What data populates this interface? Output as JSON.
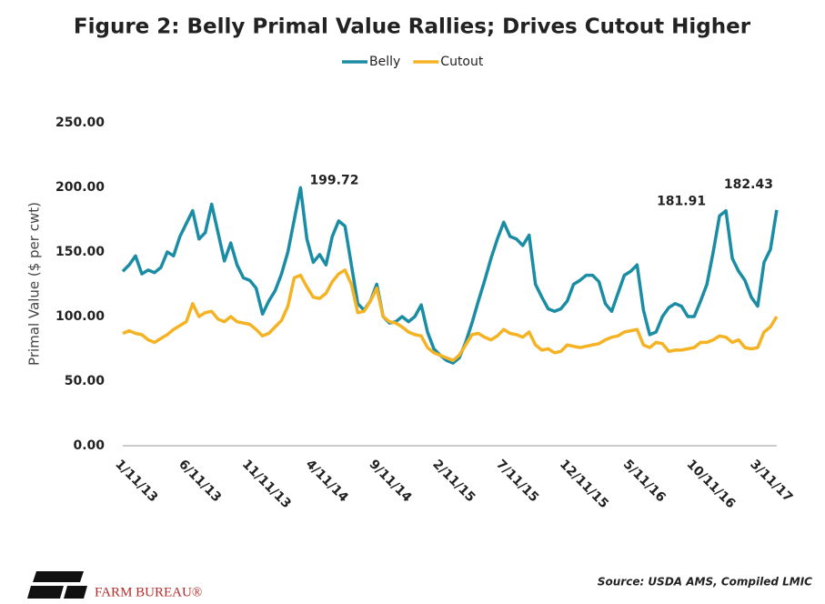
{
  "chart_data": {
    "type": "line",
    "title": "Figure 2: Belly Primal Value Rallies; Drives Cutout Higher",
    "ylabel": "Primal Value ($ per cwt)",
    "source": "Source: USDA AMS, Compiled LMIC",
    "legend": "top",
    "grid": false,
    "categories": [
      "1/11/13",
      null,
      null,
      null,
      null,
      null,
      null,
      null,
      null,
      null,
      "6/11/13",
      null,
      null,
      null,
      null,
      null,
      null,
      null,
      null,
      null,
      "11/11/13",
      null,
      null,
      null,
      null,
      null,
      null,
      null,
      null,
      null,
      "4/11/14",
      null,
      null,
      null,
      null,
      null,
      null,
      null,
      null,
      null,
      "9/11/14",
      null,
      null,
      null,
      null,
      null,
      null,
      null,
      null,
      null,
      "2/11/15",
      null,
      null,
      null,
      null,
      null,
      null,
      null,
      null,
      null,
      "7/11/15",
      null,
      null,
      null,
      null,
      null,
      null,
      null,
      null,
      null,
      "12/11/15",
      null,
      null,
      null,
      null,
      null,
      null,
      null,
      null,
      null,
      "5/11/16",
      null,
      null,
      null,
      null,
      null,
      null,
      null,
      null,
      null,
      "10/11/16",
      null,
      null,
      null,
      null,
      null,
      null,
      null,
      null,
      null,
      "3/11/17",
      null,
      null,
      null
    ],
    "series": [
      {
        "name": "Belly",
        "color": "#1a8ca3",
        "values": [
          135,
          140,
          147,
          133,
          136,
          134,
          138,
          150,
          147,
          162,
          172,
          182,
          160,
          165,
          187,
          165,
          143,
          157,
          140,
          130,
          128,
          122,
          102,
          112,
          120,
          133,
          150,
          175,
          199.72,
          160,
          142,
          148,
          140,
          162,
          174,
          170,
          140,
          110,
          105,
          112,
          125,
          100,
          95,
          96,
          100,
          96,
          100,
          109,
          88,
          75,
          70,
          66,
          64,
          68,
          80,
          95,
          112,
          128,
          145,
          160,
          173,
          162,
          160,
          155,
          163,
          125,
          115,
          106,
          104,
          106,
          112,
          125,
          128,
          132,
          132,
          127,
          110,
          104,
          118,
          132,
          135,
          140,
          105,
          86,
          88,
          100,
          107,
          110,
          108,
          100,
          100,
          112,
          125,
          150,
          178,
          181.91,
          145,
          135,
          128,
          115,
          108,
          142,
          152,
          182.43
        ]
      },
      {
        "name": "Cutout",
        "color": "#f5b324",
        "values": [
          87,
          89,
          87,
          86,
          82,
          80,
          83,
          86,
          90,
          93,
          96,
          110,
          100,
          103,
          104,
          98,
          96,
          100,
          96,
          95,
          94,
          90,
          85,
          87,
          92,
          97,
          108,
          130,
          132,
          123,
          115,
          114,
          118,
          127,
          133,
          136,
          125,
          103,
          104,
          112,
          122,
          100,
          96,
          95,
          92,
          88,
          86,
          85,
          76,
          72,
          70,
          68,
          66,
          70,
          78,
          86,
          87,
          84,
          82,
          85,
          90,
          87,
          86,
          84,
          88,
          78,
          74,
          75,
          72,
          73,
          78,
          77,
          76,
          77,
          78,
          79,
          82,
          84,
          85,
          88,
          89,
          90,
          78,
          76,
          80,
          79,
          73,
          74,
          74,
          75,
          76,
          80,
          80,
          82,
          85,
          84,
          80,
          82,
          76,
          75,
          76,
          88,
          92,
          100
        ]
      }
    ],
    "ylim": [
      0,
      250
    ],
    "yticks": [
      {
        "value": 0,
        "label": "0.00"
      },
      {
        "value": 50,
        "label": "50.00"
      },
      {
        "value": 100,
        "label": "100.00"
      },
      {
        "value": 150,
        "label": "150.00"
      },
      {
        "value": 200,
        "label": "200.00"
      },
      {
        "value": 250,
        "label": "250.00"
      }
    ]
  },
  "logo_text": "FARM BUREAU®"
}
